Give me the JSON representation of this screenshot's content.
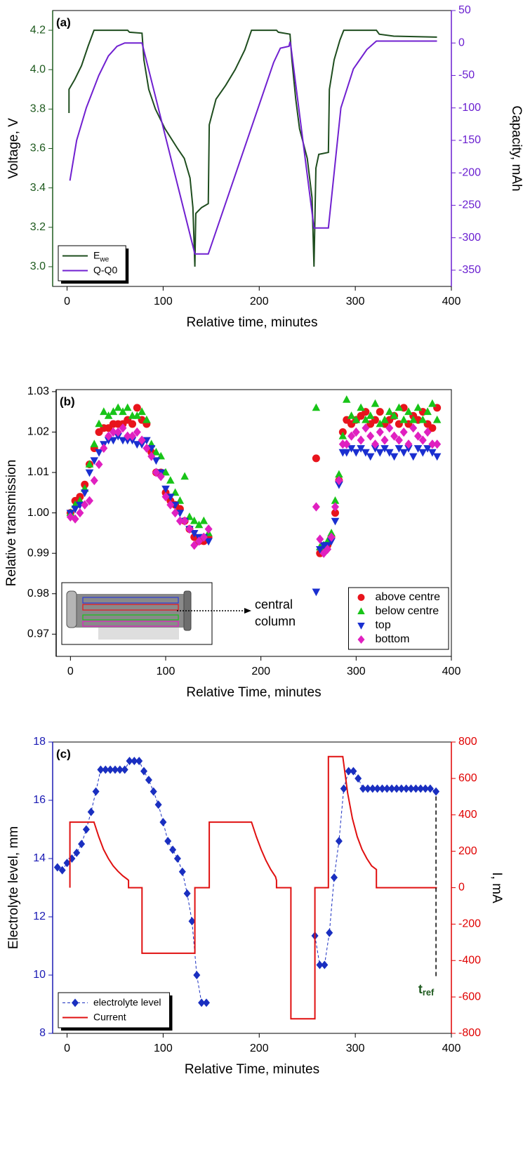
{
  "chart_data": [
    {
      "type": "line",
      "label": "(a)",
      "xlabel": "Relative time, minutes",
      "ylabel": "Voltage, V",
      "y2label": "Capacity, mAh",
      "xlim": [
        -15,
        400
      ],
      "xticks": [
        0,
        100,
        200,
        300,
        400
      ],
      "ylim": [
        2.9,
        4.3
      ],
      "yticks": [
        {
          "value": 3,
          "label": "3.0"
        },
        3.2,
        3.4,
        3.6,
        3.8,
        {
          "value": 4,
          "label": "4.0"
        },
        4.2
      ],
      "y2lim": [
        -375,
        50
      ],
      "y2ticks": [
        50,
        0,
        -50,
        -100,
        -150,
        -200,
        -250,
        -300,
        -350
      ],
      "ycolor": "#1e5a1e",
      "y2color": "#6a1fd0",
      "legend": "lower left",
      "series": [
        {
          "name": "E",
          "name_subscript": "we",
          "color": "#1e4d1e",
          "x": [
            2,
            2,
            8,
            15,
            22,
            28,
            63,
            65,
            78,
            80,
            85,
            92,
            102,
            115,
            122,
            128,
            131,
            133,
            134,
            140,
            147,
            148,
            155,
            165,
            175,
            185,
            192,
            218,
            220,
            232,
            234,
            238,
            242,
            250,
            255,
            257,
            259,
            262,
            272,
            273,
            278,
            284,
            288,
            322,
            325,
            340,
            385
          ],
          "values": [
            3.78,
            3.9,
            3.95,
            4.02,
            4.12,
            4.2,
            4.2,
            4.19,
            4.185,
            4.05,
            3.9,
            3.8,
            3.7,
            3.6,
            3.55,
            3.45,
            3.3,
            3.0,
            3.27,
            3.3,
            3.32,
            3.72,
            3.85,
            3.92,
            4.0,
            4.1,
            4.2,
            4.2,
            4.19,
            4.18,
            4.05,
            3.85,
            3.7,
            3.55,
            3.35,
            3.0,
            3.5,
            3.57,
            3.58,
            3.9,
            4.05,
            4.15,
            4.2,
            4.2,
            4.18,
            4.17,
            4.165
          ]
        },
        {
          "name": "Q-Q0",
          "color": "#7020d0",
          "axis": "y2",
          "x": [
            3,
            10,
            20,
            33,
            43,
            52,
            60,
            78,
            133,
            147,
            215,
            222,
            231,
            232,
            233,
            257,
            272,
            285,
            298,
            312,
            322,
            385
          ],
          "values": [
            -212,
            -150,
            -100,
            -50,
            -20,
            -5,
            0,
            0,
            -325,
            -325,
            -30,
            -8,
            -5,
            2,
            -5,
            -285,
            -285,
            -100,
            -40,
            -10,
            3,
            3
          ]
        }
      ]
    },
    {
      "type": "scatter",
      "label": "(b)",
      "xlabel": "Relative Time, minutes",
      "ylabel": "Relative transmission",
      "xlim": [
        -15,
        400
      ],
      "xticks": [
        0,
        100,
        200,
        300,
        400
      ],
      "ylim": [
        0.9645,
        1.0305
      ],
      "yticks": [
        0.97,
        0.98,
        0.99,
        {
          "value": 1,
          "label": "1.00"
        },
        1.01,
        1.02,
        1.03
      ],
      "legend": "lower right",
      "annotation": {
        "lines": [
          "central",
          "column"
        ]
      },
      "x": [
        0,
        5,
        10,
        15,
        20,
        25,
        30,
        35,
        40,
        45,
        50,
        55,
        60,
        65,
        70,
        75,
        80,
        85,
        90,
        95,
        100,
        105,
        110,
        115,
        120,
        125,
        130,
        135,
        140,
        145,
        258,
        262,
        266,
        270,
        274,
        278,
        282,
        286,
        290,
        295,
        300,
        305,
        310,
        315,
        320,
        325,
        330,
        335,
        340,
        345,
        350,
        355,
        360,
        365,
        370,
        375,
        380,
        385
      ],
      "series": [
        {
          "name": "above centre",
          "color": "#e8141c",
          "marker": "circle",
          "values": [
            1.0,
            1.003,
            1.004,
            1.007,
            1.012,
            1.016,
            1.02,
            1.021,
            1.021,
            1.022,
            1.022,
            1.022,
            1.023,
            1.022,
            1.026,
            1.023,
            1.022,
            1.015,
            1.01,
            1.01,
            1.005,
            1.003,
            1.002,
            1.001,
            0.998,
            0.996,
            0.994,
            0.993,
            0.993,
            0.994,
            1.0135,
            0.99,
            0.991,
            0.992,
            0.994,
            1.0,
            1.008,
            1.02,
            1.023,
            1.022,
            1.023,
            1.024,
            1.025,
            1.022,
            1.023,
            1.025,
            1.022,
            1.023,
            1.024,
            1.022,
            1.026,
            1.022,
            1.024,
            1.023,
            1.025,
            1.022,
            1.021,
            1.026
          ]
        },
        {
          "name": "below centre",
          "color": "#18c418",
          "marker": "triangle-up",
          "values": [
            1.0,
            1.002,
            1.003,
            1.006,
            1.012,
            1.017,
            1.022,
            1.025,
            1.024,
            1.025,
            1.026,
            1.025,
            1.026,
            1.024,
            1.024,
            1.025,
            1.023,
            1.017,
            1.015,
            1.014,
            1.01,
            1.008,
            1.005,
            1.003,
            1.009,
            0.999,
            0.998,
            0.997,
            0.998,
            0.995,
            1.026,
            0.9915,
            0.992,
            0.993,
            0.995,
            1.003,
            1.0095,
            1.019,
            1.028,
            1.024,
            1.023,
            1.026,
            1.023,
            1.024,
            1.027,
            1.022,
            1.023,
            1.025,
            1.024,
            1.026,
            1.023,
            1.025,
            1.023,
            1.026,
            1.023,
            1.025,
            1.027,
            1.023
          ]
        },
        {
          "name": "top",
          "color": "#1a2fd0",
          "marker": "triangle-down",
          "values": [
            1.0,
            1.001,
            1.002,
            1.005,
            1.01,
            1.013,
            1.015,
            1.017,
            1.018,
            1.018,
            1.019,
            1.018,
            1.018,
            1.018,
            1.017,
            1.017,
            1.018,
            1.016,
            1.013,
            1.01,
            1.006,
            1.004,
            1.002,
            1.0,
            0.998,
            0.996,
            0.995,
            0.994,
            0.994,
            0.993,
            0.9805,
            0.991,
            0.992,
            0.992,
            0.993,
            0.998,
            1.007,
            1.015,
            1.015,
            1.016,
            1.015,
            1.016,
            1.015,
            1.014,
            1.016,
            1.015,
            1.016,
            1.015,
            1.014,
            1.016,
            1.015,
            1.016,
            1.014,
            1.016,
            1.015,
            1.016,
            1.015,
            1.014
          ]
        },
        {
          "name": "bottom",
          "color": "#e020c0",
          "marker": "diamond",
          "values": [
            0.999,
            0.9985,
            1.0,
            1.002,
            1.003,
            1.008,
            1.012,
            1.016,
            1.019,
            1.02,
            1.02,
            1.021,
            1.019,
            1.019,
            1.02,
            1.018,
            1.016,
            1.014,
            1.01,
            1.009,
            1.004,
            1.002,
            1.0,
            0.998,
            0.998,
            0.996,
            0.992,
            0.993,
            0.994,
            0.996,
            1.0015,
            0.9935,
            0.99,
            0.991,
            0.994,
            1.0015,
            1.008,
            1.017,
            1.017,
            1.019,
            1.02,
            1.018,
            1.021,
            1.019,
            1.017,
            1.02,
            1.018,
            1.021,
            1.019,
            1.018,
            1.02,
            1.017,
            1.021,
            1.019,
            1.018,
            1.02,
            1.017,
            1.017
          ]
        }
      ]
    },
    {
      "type": "line",
      "label": "(c)",
      "xlabel": "Relative Time, minutes",
      "ylabel": "Electrolyte level, mm",
      "y2label": "I, mA",
      "xlim": [
        -15,
        400
      ],
      "xticks": [
        0,
        100,
        200,
        300,
        400
      ],
      "ylim": [
        8,
        18
      ],
      "yticks": [
        8,
        10,
        12,
        14,
        16,
        18
      ],
      "y2lim": [
        -800,
        800
      ],
      "y2ticks": [
        -800,
        -600,
        -400,
        -200,
        0,
        200,
        400,
        600,
        800
      ],
      "ycolor": "#1a1ab4",
      "y2color": "#e00000",
      "legend": "lower left",
      "annotation": {
        "text": "t",
        "subscript": "ref",
        "color": "#1e5a1e"
      },
      "series": [
        {
          "name": "electrolyte level",
          "color": "#1a2fc0",
          "marker": "diamond",
          "linestyle": "dashed",
          "x": [
            -10,
            -5,
            0,
            5,
            10,
            15,
            20,
            25,
            30,
            35,
            40,
            45,
            50,
            55,
            60,
            65,
            70,
            75,
            80,
            85,
            90,
            95,
            100,
            105,
            110,
            115,
            120,
            125,
            130,
            135,
            140,
            145,
            200,
            258,
            263,
            268,
            273,
            278,
            283,
            288,
            293,
            298,
            303,
            308,
            313,
            318,
            323,
            328,
            333,
            338,
            343,
            348,
            353,
            358,
            363,
            368,
            373,
            378,
            384
          ],
          "values": [
            13.7,
            13.6,
            13.85,
            14.0,
            14.2,
            14.5,
            15.0,
            15.6,
            16.3,
            17.05,
            17.05,
            17.05,
            17.05,
            17.05,
            17.05,
            17.35,
            17.35,
            17.35,
            17.0,
            16.7,
            16.3,
            15.85,
            15.25,
            14.6,
            14.3,
            14.0,
            13.55,
            12.8,
            11.85,
            10.0,
            9.05,
            9.05,
            null,
            11.35,
            10.35,
            10.35,
            11.45,
            13.35,
            14.6,
            16.4,
            17.0,
            17.0,
            16.75,
            16.4,
            16.4,
            16.4,
            16.4,
            16.4,
            16.4,
            16.4,
            16.4,
            16.4,
            16.4,
            16.4,
            16.4,
            16.4,
            16.4,
            16.4,
            16.3
          ]
        },
        {
          "name": "Current",
          "color": "#e01010",
          "axis": "y2",
          "x": [
            3,
            3,
            28,
            33,
            38,
            43,
            48,
            53,
            58,
            63,
            64,
            64,
            78,
            78,
            133,
            133,
            148,
            148,
            192,
            197,
            202,
            207,
            212,
            217,
            218,
            218,
            233,
            233,
            258,
            258,
            272,
            272,
            287,
            292,
            297,
            302,
            307,
            312,
            317,
            322,
            322,
            385
          ],
          "values": [
            0,
            360,
            360,
            280,
            210,
            160,
            120,
            90,
            65,
            45,
            40,
            0,
            0,
            -360,
            -360,
            0,
            0,
            360,
            360,
            280,
            210,
            150,
            100,
            60,
            40,
            0,
            0,
            -720,
            -720,
            0,
            0,
            720,
            720,
            520,
            380,
            280,
            210,
            160,
            120,
            100,
            0,
            0
          ]
        }
      ]
    }
  ]
}
